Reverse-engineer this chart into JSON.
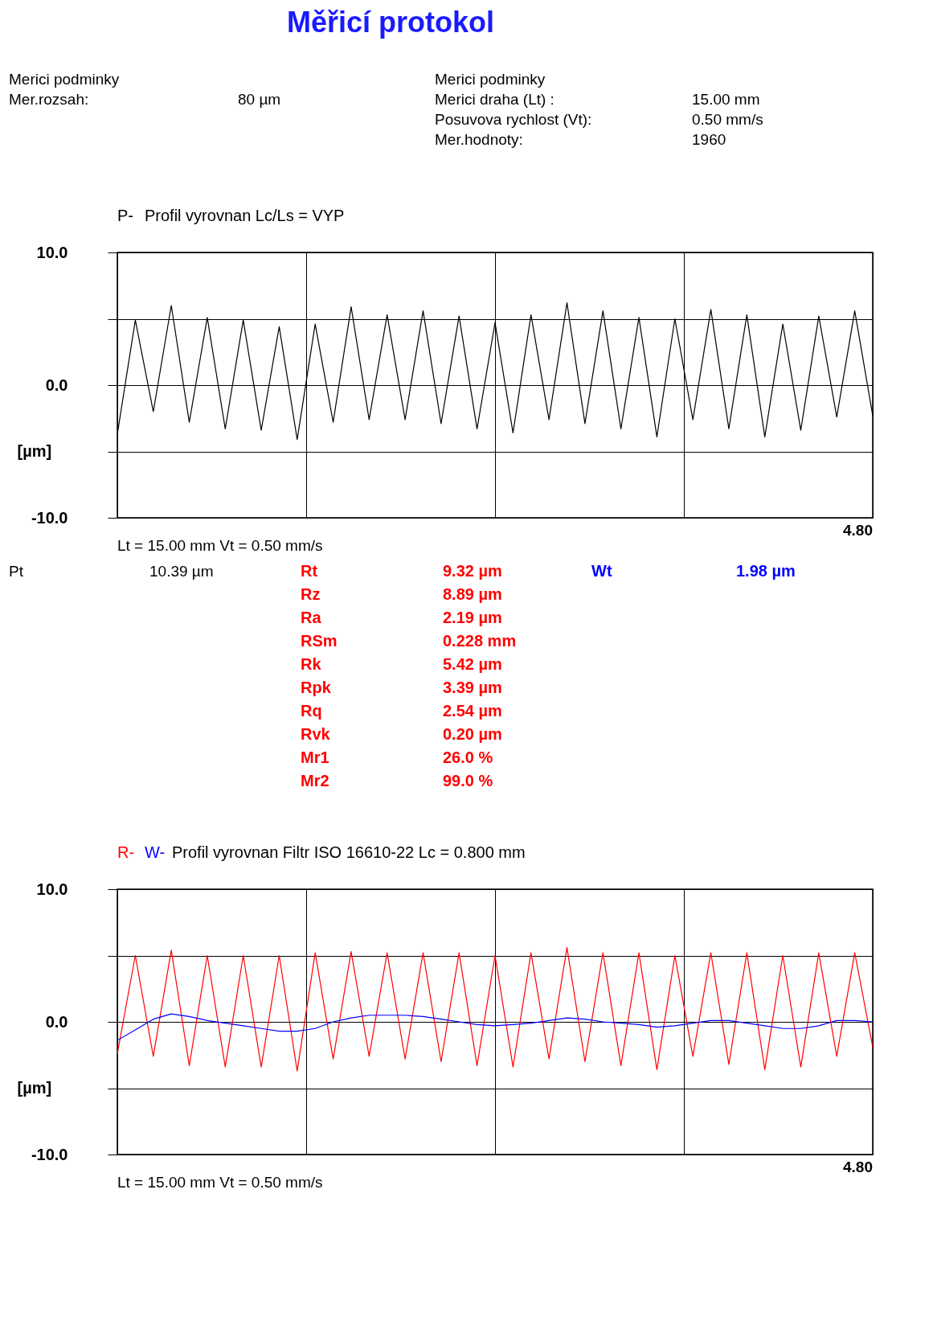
{
  "chart_data": [
    {
      "type": "line",
      "title": "Profil  vyrovnan  Lc/Ls = VYP",
      "ylabel": "[µm]",
      "ylim": [
        -10,
        10
      ],
      "yticks": [
        {
          "value": 10,
          "label": "10.0"
        },
        {
          "value": 5,
          "label": null
        },
        {
          "value": 0,
          "label": "0.0"
        },
        {
          "value": -5,
          "label": null
        },
        {
          "value": -10,
          "label": "-10.0"
        }
      ],
      "grid": true,
      "categories": [
        null,
        null,
        null,
        null,
        null,
        null,
        null,
        null,
        null,
        null,
        null,
        null,
        null,
        null,
        null,
        null,
        null,
        null,
        null,
        null,
        null,
        null,
        null,
        null,
        null,
        null,
        null,
        null,
        null,
        null,
        null,
        null,
        null,
        null,
        null,
        null,
        null,
        null,
        null,
        null,
        null,
        null,
        null
      ],
      "annotations": [
        "Měřicí protokol",
        "Merici podminky",
        "Mer.rozsah:",
        "80 µm",
        "Merici podminky",
        "Merici draha (Lt) :",
        "15.00 mm",
        "Posuvova rychlost  (Vt):",
        "0.50 mm/s",
        "Mer.hodnoty:",
        "1960",
        "Lt = 15.00  mm    Vt = 0.50  mm/s",
        "4.80"
      ],
      "series": [
        {
          "name": "P-",
          "color": "#000000",
          "values": [
            -3.7,
            4.9,
            -2.0,
            6.0,
            -2.8,
            5.1,
            -3.3,
            4.9,
            -3.4,
            4.4,
            -4.1,
            4.6,
            -2.8,
            5.9,
            -2.6,
            5.3,
            -2.6,
            5.6,
            -2.9,
            5.2,
            -3.3,
            4.7,
            -3.6,
            5.3,
            -2.6,
            6.2,
            -2.9,
            5.6,
            -3.3,
            5.1,
            -3.9,
            5.0,
            -2.6,
            5.7,
            -3.3,
            5.3,
            -3.9,
            4.6,
            -3.4,
            5.2,
            -2.4,
            5.6,
            -2.3
          ]
        }
      ]
    },
    {
      "type": "line",
      "title": "Profil  vyrovnan  Filtr  ISO 16610-22  Lc = 0.800  mm",
      "ylabel": "[µm]",
      "ylim": [
        -10,
        10
      ],
      "yticks": [
        {
          "value": 10,
          "label": "10.0"
        },
        {
          "value": 5,
          "label": null
        },
        {
          "value": 0,
          "label": "0.0"
        },
        {
          "value": -5,
          "label": null
        },
        {
          "value": -10,
          "label": "-10.0"
        }
      ],
      "grid": true,
      "categories": [
        null,
        null,
        null,
        null,
        null,
        null,
        null,
        null,
        null,
        null,
        null,
        null,
        null,
        null,
        null,
        null,
        null,
        null,
        null,
        null,
        null,
        null,
        null,
        null,
        null,
        null,
        null,
        null,
        null,
        null,
        null,
        null,
        null,
        null,
        null,
        null,
        null,
        null,
        null,
        null,
        null,
        null,
        null
      ],
      "annotations": [
        "Pt",
        "10.39 µm",
        "Rt",
        "9.32 µm",
        "Rz",
        "8.89 µm",
        "Ra",
        "2.19 µm",
        "RSm",
        "0.228 mm",
        "Rk",
        "5.42 µm",
        "Rpk",
        "3.39 µm",
        "Rq",
        "2.54 µm",
        "Rvk",
        "0.20 µm",
        "Mr1",
        "26.0   %",
        "Mr2",
        "99.0   %",
        "Wt",
        "1.98 µm",
        "Lt = 15.00  mm    Vt = 0.50  mm/s",
        "4.80"
      ],
      "series": [
        {
          "name": "R-",
          "color": "#ff0000",
          "values": [
            -2.4,
            5.0,
            -2.6,
            5.4,
            -3.3,
            5.0,
            -3.4,
            5.0,
            -3.4,
            5.0,
            -3.7,
            5.2,
            -2.8,
            5.3,
            -2.6,
            5.2,
            -2.8,
            5.2,
            -3.0,
            5.2,
            -3.3,
            5.0,
            -3.4,
            5.2,
            -2.8,
            5.6,
            -3.0,
            5.2,
            -3.3,
            5.2,
            -3.6,
            5.0,
            -2.6,
            5.2,
            -3.2,
            5.2,
            -3.6,
            5.0,
            -3.4,
            5.2,
            -2.6,
            5.2,
            -1.9
          ]
        },
        {
          "name": "W-",
          "color": "#0000ff",
          "values": [
            -1.4,
            -0.6,
            0.2,
            0.6,
            0.4,
            0.1,
            -0.1,
            -0.3,
            -0.5,
            -0.7,
            -0.7,
            -0.5,
            0.0,
            0.3,
            0.5,
            0.5,
            0.5,
            0.4,
            0.2,
            0.0,
            -0.2,
            -0.3,
            -0.2,
            -0.1,
            0.1,
            0.3,
            0.2,
            0.0,
            -0.1,
            -0.2,
            -0.4,
            -0.3,
            -0.1,
            0.1,
            0.1,
            -0.1,
            -0.3,
            -0.5,
            -0.5,
            -0.3,
            0.1,
            0.1,
            0.0
          ]
        }
      ]
    }
  ]
}
